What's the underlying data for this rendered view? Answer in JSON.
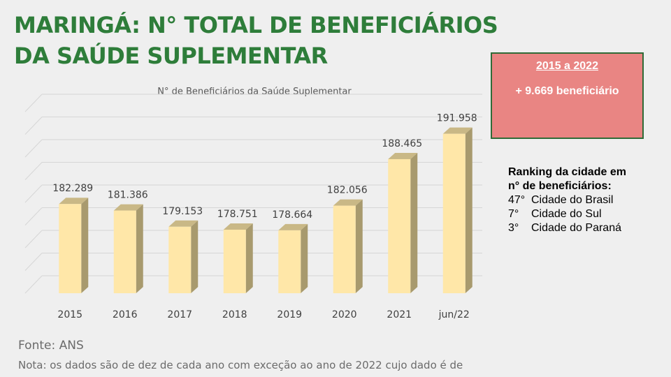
{
  "header": {
    "title_line1": "MARINGÁ: N° TOTAL DE BENEFICIÁRIOS",
    "title_line2": "DA SAÚDE SUPLEMENTAR"
  },
  "highlight": {
    "period": "2015 a 2022",
    "value": "+ 9.669 beneficiário"
  },
  "ranking": {
    "title_line1": "Ranking da cidade em",
    "title_line2": "n° de beneficiários:",
    "items": [
      {
        "position": "47°",
        "label": "Cidade do Brasil"
      },
      {
        "position": "7°",
        "label": "Cidade do Sul"
      },
      {
        "position": "3°",
        "label": "Cidade do Paraná"
      }
    ]
  },
  "footer": {
    "source": "Fonte: ANS",
    "note": "Nota: os dados são de dez de cada ano com exceção ao ano de 2022 cujo dado é de"
  },
  "colors": {
    "title": "#2e7d3a",
    "highlight_bg": "#e98583",
    "highlight_border": "#2f6b37",
    "bar_front": "#ffe7a8",
    "bar_side": "#a89a6e",
    "bar_top": "#c9b886"
  },
  "chart_data": {
    "type": "bar",
    "title": "N° de Beneficiários da Saúde Suplementar",
    "categories": [
      "2015",
      "2016",
      "2017",
      "2018",
      "2019",
      "2020",
      "2021",
      "jun/22"
    ],
    "values": [
      182289,
      181386,
      179153,
      178751,
      178664,
      182056,
      188465,
      191958
    ],
    "data_labels": [
      "182.289",
      "181.386",
      "179.153",
      "178.751",
      "178.664",
      "182.056",
      "188.465",
      "191.958"
    ],
    "ylim": [
      170000,
      195000
    ],
    "gridlines": true,
    "legend": "none",
    "style": "3d-column"
  }
}
